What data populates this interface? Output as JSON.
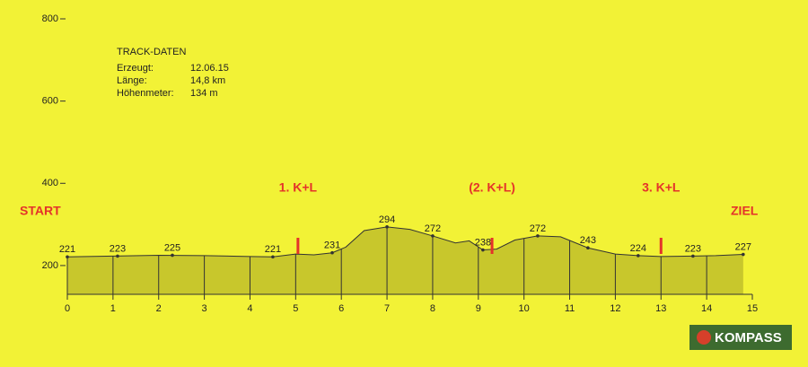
{
  "chart_data": {
    "type": "area",
    "profile": {
      "x": [
        0,
        1,
        2,
        3,
        4,
        4.5,
        5,
        5.4,
        5.8,
        6.1,
        6.5,
        7,
        7.5,
        8,
        8.5,
        8.8,
        9.1,
        9.4,
        9.8,
        10.3,
        10.8,
        11.4,
        12,
        12.5,
        13,
        13.7,
        14.2,
        14.8
      ],
      "values": [
        221,
        223,
        225,
        224,
        222,
        221,
        228,
        226,
        231,
        245,
        285,
        294,
        288,
        272,
        255,
        260,
        238,
        240,
        262,
        272,
        270,
        243,
        228,
        224,
        222,
        223,
        224,
        227
      ]
    },
    "points": {
      "x": [
        0,
        1.1,
        2.3,
        4.5,
        5.8,
        7,
        8,
        9.1,
        10.3,
        11.4,
        12.5,
        13.7,
        14.8
      ],
      "values": [
        221,
        223,
        225,
        221,
        231,
        294,
        272,
        238,
        272,
        243,
        224,
        223,
        227
      ]
    },
    "checkpoints": {
      "x": [
        5.05,
        9.3,
        13
      ],
      "labels": [
        "1. K+L",
        "(2. K+L)",
        "3. K+L"
      ]
    },
    "start_label": "START",
    "end_label": "ZIEL",
    "color": "#c8c72c",
    "xlim": [
      0,
      15
    ],
    "xticks": [
      0,
      1,
      2,
      3,
      4,
      5,
      6,
      7,
      8,
      9,
      10,
      11,
      12,
      13,
      14,
      15
    ],
    "ylim": [
      130,
      800
    ],
    "yticks": [
      200,
      400,
      600,
      800
    ]
  },
  "track_data": {
    "title": "TRACK-DATEN",
    "rows": [
      [
        "Erzeugt:",
        "12.06.15"
      ],
      [
        "Länge:",
        "14,8 km"
      ],
      [
        "Höhenmeter:",
        "134 m"
      ]
    ]
  },
  "logo": "KOMPASS"
}
